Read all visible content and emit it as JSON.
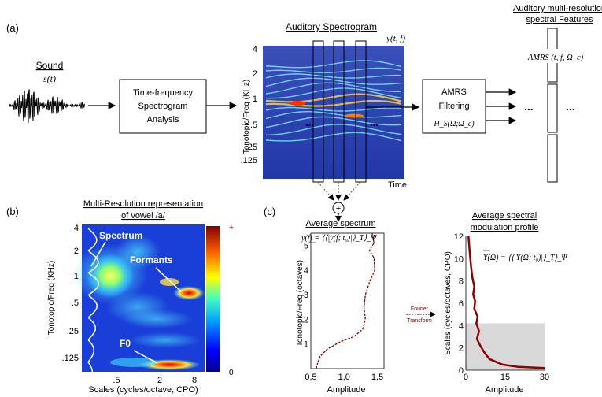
{
  "panel_labels": {
    "a": "(a)",
    "b": "(b)",
    "c": "(c)"
  },
  "sound": {
    "title": "Sound",
    "symbol": "s(t)"
  },
  "tf_box": {
    "line1": "Time-frequency",
    "line2": "Spectrogram",
    "line3": "Analysis"
  },
  "spectrogram": {
    "title": "Auditory Spectrogram",
    "symbol": "y(t, f)",
    "ylabel": "Tonotopic/Freq (KHz)",
    "yticks": [
      "4",
      "2",
      "1",
      ".5",
      ".25",
      ".125"
    ],
    "xlabel": "Time",
    "dots": "..."
  },
  "amrs_box": {
    "line1": "AMRS",
    "line2": "Filtering",
    "line3": "H_S(Ω;Ω_c)"
  },
  "features": {
    "title_line1": "Auditory multi-resolution",
    "title_line2": "spectral Features",
    "symbol": "AMRS (t, f, Ω_c)",
    "dots": "..."
  },
  "sum_symbol": "+",
  "multires": {
    "title_line1": "Multi-Resolution representation",
    "title_line2": "of vowel /a/",
    "ylabel": "Tonotopic/Freq (KHz)",
    "yticks": [
      "4",
      "2",
      "1",
      ".5",
      ".25",
      ".125"
    ],
    "xlabel": "Scales (cycles/octave, CPO)",
    "xticks": [
      ".5",
      "2",
      "8"
    ],
    "colorbar_top": "+",
    "colorbar_bottom": "0",
    "annotations": {
      "spectrum": "Spectrum",
      "formants": "Formants",
      "f0": "F0"
    }
  },
  "avg_spectrum": {
    "title": "Average spectrum",
    "formula": "y(f) = ⟨⟨|y(f; t₀)|⟩_T⟩_Ψ",
    "ylabel": "Tonotopic/Freq (octaves)",
    "xlabel": "Amplitude",
    "xticks": [
      "0,5",
      "1,0",
      "1,5"
    ],
    "yticks": [
      "1",
      "2",
      "3",
      "4",
      "5"
    ]
  },
  "fourier": {
    "line1": "Fourier",
    "line2": "Transform"
  },
  "modulation": {
    "title_line1": "Average spectral",
    "title_line2": "modulation profile",
    "formula": "Y(Ω) = ⟨⟨|Y(Ω; t₀)|⟩_T⟩_Ψ",
    "ylabel": "Scales (cycles/octaves, CPO)",
    "xlabel": "Amplitude",
    "xticks": [
      "0",
      "15",
      "30"
    ],
    "yticks": [
      "0",
      "2",
      "4",
      "6",
      "8",
      "10",
      "12"
    ]
  },
  "colors": {
    "curve": "#8b0000",
    "shade": "#d9d9d9",
    "spec_bg": "#2040b0"
  }
}
